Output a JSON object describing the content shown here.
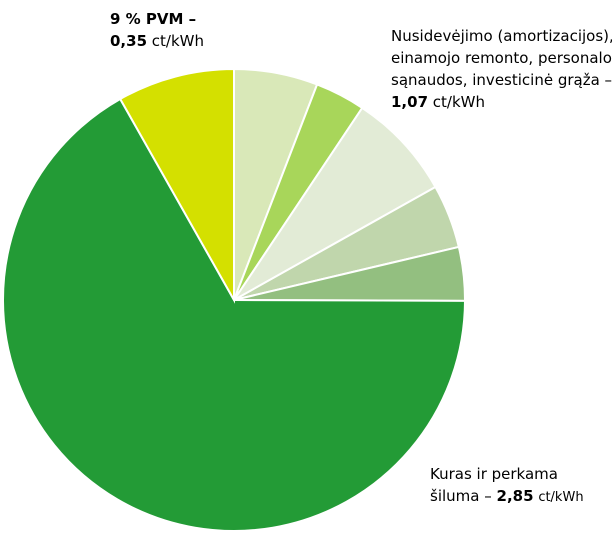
{
  "chart_data": {
    "type": "pie",
    "categories": [
      null,
      null,
      null,
      null,
      null,
      "Kuras ir perkama",
      "9 % PVM –"
    ],
    "category_lines": {
      "5": "šiluma –"
    },
    "values": [
      0.25,
      0.15,
      0.32,
      0.19,
      0.16,
      2.85,
      0.35
    ],
    "value_labels": [
      null,
      null,
      null,
      null,
      null,
      "2,85",
      "0,35"
    ],
    "colors": [
      "#d9e8b8",
      "#a8d65a",
      "#e2ebd6",
      "#c0d6ac",
      "#93bf80",
      "#239b36",
      "#d4e000"
    ],
    "unit": "ct/kWh",
    "groups": [
      {
        "text": [
          "Nusidevėjimo (amortizacijos),",
          "einamojo remonto, personalo",
          "sąnaudos, investicinė grąža –"
        ],
        "value": 1.07,
        "value_label": "1,07"
      }
    ]
  }
}
